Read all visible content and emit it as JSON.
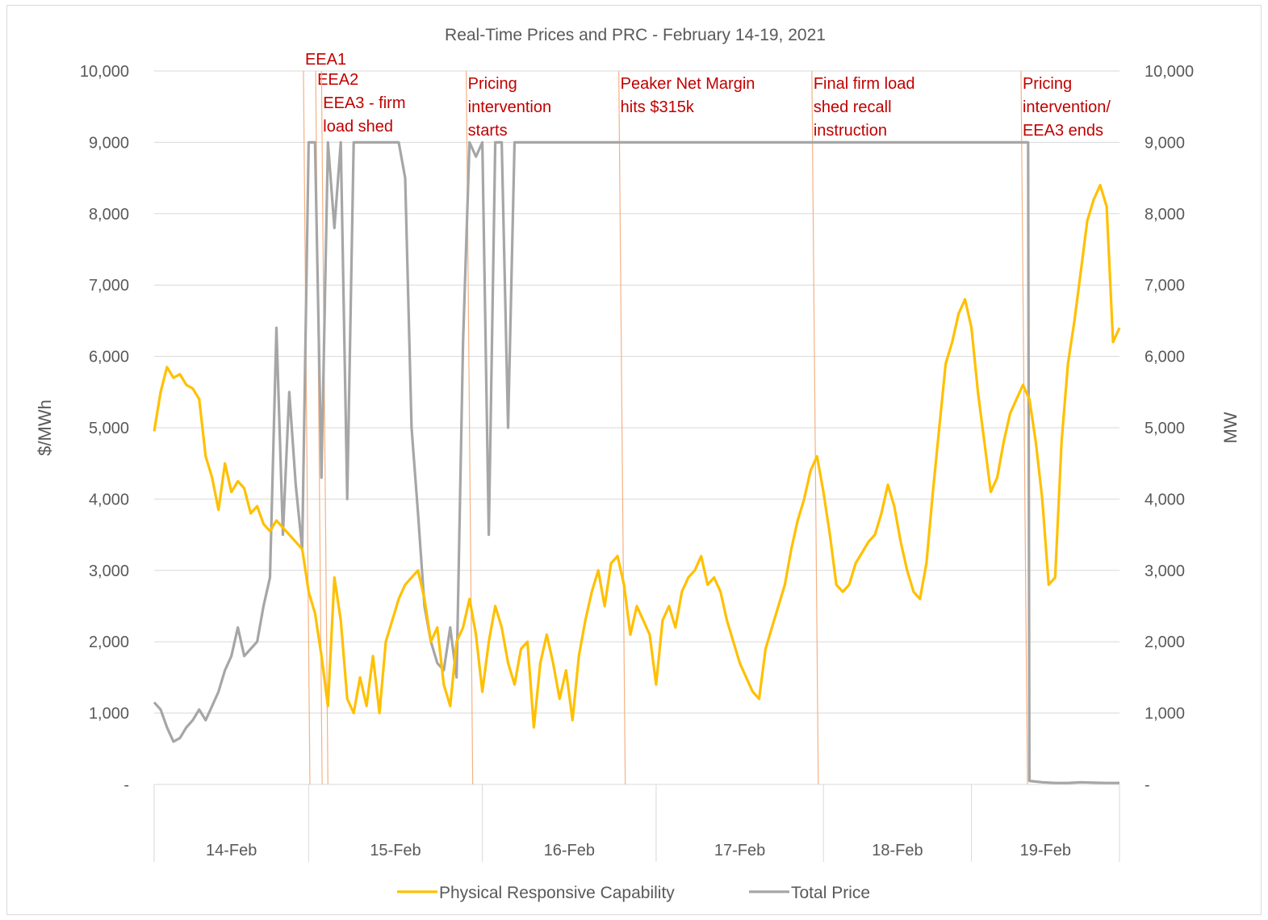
{
  "chart_data": {
    "type": "line",
    "title": "Real-Time Prices and PRC - February 14-19, 2021",
    "ylabel_left": "$/MWh",
    "ylabel_right": "MW",
    "ylim": [
      0,
      10000
    ],
    "y_ticks": [
      "-",
      "1,000",
      "2,000",
      "3,000",
      "4,000",
      "5,000",
      "6,000",
      "7,000",
      "8,000",
      "9,000",
      "10,000"
    ],
    "x_range_hours": [
      0,
      150
    ],
    "x_categories": [
      {
        "label": "14-Feb",
        "start": 0,
        "end": 24
      },
      {
        "label": "15-Feb",
        "start": 24,
        "end": 51
      },
      {
        "label": "16-Feb",
        "start": 51,
        "end": 78
      },
      {
        "label": "17-Feb",
        "start": 78,
        "end": 104
      },
      {
        "label": "18-Feb",
        "start": 104,
        "end": 127
      },
      {
        "label": "19-Feb",
        "start": 127,
        "end": 150
      }
    ],
    "series": [
      {
        "name": "Physical Responsive Capability",
        "color": "#ffc000",
        "points": [
          [
            0,
            4950
          ],
          [
            1,
            5500
          ],
          [
            2,
            5850
          ],
          [
            3,
            5700
          ],
          [
            4,
            5750
          ],
          [
            5,
            5600
          ],
          [
            6,
            5550
          ],
          [
            7,
            5400
          ],
          [
            8,
            4600
          ],
          [
            9,
            4300
          ],
          [
            10,
            3850
          ],
          [
            11,
            4500
          ],
          [
            12,
            4100
          ],
          [
            13,
            4250
          ],
          [
            14,
            4150
          ],
          [
            15,
            3800
          ],
          [
            16,
            3900
          ],
          [
            17,
            3650
          ],
          [
            18,
            3550
          ],
          [
            19,
            3700
          ],
          [
            20,
            3600
          ],
          [
            21,
            3500
          ],
          [
            22,
            3400
          ],
          [
            23,
            3300
          ],
          [
            24,
            2700
          ],
          [
            25,
            2400
          ],
          [
            26,
            1800
          ],
          [
            27,
            1100
          ],
          [
            28,
            2900
          ],
          [
            29,
            2300
          ],
          [
            30,
            1200
          ],
          [
            31,
            1000
          ],
          [
            32,
            1500
          ],
          [
            33,
            1100
          ],
          [
            34,
            1800
          ],
          [
            35,
            1000
          ],
          [
            36,
            2000
          ],
          [
            37,
            2300
          ],
          [
            38,
            2600
          ],
          [
            39,
            2800
          ],
          [
            40,
            2900
          ],
          [
            41,
            3000
          ],
          [
            42,
            2600
          ],
          [
            43,
            2000
          ],
          [
            44,
            2200
          ],
          [
            45,
            1400
          ],
          [
            46,
            1100
          ],
          [
            47,
            2000
          ],
          [
            48,
            2200
          ],
          [
            49,
            2600
          ],
          [
            50,
            2100
          ],
          [
            51,
            1300
          ],
          [
            52,
            2000
          ],
          [
            53,
            2500
          ],
          [
            54,
            2200
          ],
          [
            55,
            1700
          ],
          [
            56,
            1400
          ],
          [
            57,
            1900
          ],
          [
            58,
            2000
          ],
          [
            59,
            800
          ],
          [
            60,
            1700
          ],
          [
            61,
            2100
          ],
          [
            62,
            1700
          ],
          [
            63,
            1200
          ],
          [
            64,
            1600
          ],
          [
            65,
            900
          ],
          [
            66,
            1800
          ],
          [
            67,
            2300
          ],
          [
            68,
            2700
          ],
          [
            69,
            3000
          ],
          [
            70,
            2500
          ],
          [
            71,
            3100
          ],
          [
            72,
            3200
          ],
          [
            73,
            2800
          ],
          [
            74,
            2100
          ],
          [
            75,
            2500
          ],
          [
            76,
            2300
          ],
          [
            77,
            2100
          ],
          [
            78,
            1400
          ],
          [
            79,
            2300
          ],
          [
            80,
            2500
          ],
          [
            81,
            2200
          ],
          [
            82,
            2700
          ],
          [
            83,
            2900
          ],
          [
            84,
            3000
          ],
          [
            85,
            3200
          ],
          [
            86,
            2800
          ],
          [
            87,
            2900
          ],
          [
            88,
            2700
          ],
          [
            89,
            2300
          ],
          [
            90,
            2000
          ],
          [
            91,
            1700
          ],
          [
            92,
            1500
          ],
          [
            93,
            1300
          ],
          [
            94,
            1200
          ],
          [
            95,
            1900
          ],
          [
            96,
            2200
          ],
          [
            97,
            2500
          ],
          [
            98,
            2800
          ],
          [
            99,
            3300
          ],
          [
            100,
            3700
          ],
          [
            101,
            4000
          ],
          [
            102,
            4400
          ],
          [
            103,
            4600
          ],
          [
            104,
            4100
          ],
          [
            105,
            3500
          ],
          [
            106,
            2800
          ],
          [
            107,
            2700
          ],
          [
            108,
            2800
          ],
          [
            109,
            3100
          ],
          [
            110,
            3250
          ],
          [
            111,
            3400
          ],
          [
            112,
            3500
          ],
          [
            113,
            3800
          ],
          [
            114,
            4200
          ],
          [
            115,
            3900
          ],
          [
            116,
            3400
          ],
          [
            117,
            3000
          ],
          [
            118,
            2700
          ],
          [
            119,
            2600
          ],
          [
            120,
            3100
          ],
          [
            121,
            4100
          ],
          [
            122,
            5000
          ],
          [
            123,
            5900
          ],
          [
            124,
            6200
          ],
          [
            125,
            6600
          ],
          [
            126,
            6800
          ],
          [
            127,
            6400
          ],
          [
            128,
            5500
          ],
          [
            129,
            4800
          ],
          [
            130,
            4100
          ],
          [
            131,
            4300
          ],
          [
            132,
            4800
          ],
          [
            133,
            5200
          ],
          [
            134,
            5400
          ],
          [
            135,
            5600
          ],
          [
            136,
            5400
          ],
          [
            137,
            4800
          ],
          [
            138,
            4000
          ],
          [
            139,
            2800
          ],
          [
            140,
            2900
          ],
          [
            141,
            4800
          ],
          [
            142,
            5900
          ],
          [
            143,
            6500
          ],
          [
            144,
            7200
          ],
          [
            145,
            7900
          ],
          [
            146,
            8200
          ],
          [
            147,
            8400
          ],
          [
            148,
            8100
          ],
          [
            149,
            6200
          ],
          [
            150,
            6400
          ]
        ]
      },
      {
        "name": "Total Price",
        "color": "#a6a6a6",
        "points": [
          [
            0,
            1150
          ],
          [
            1,
            1050
          ],
          [
            2,
            800
          ],
          [
            3,
            600
          ],
          [
            4,
            650
          ],
          [
            5,
            800
          ],
          [
            6,
            900
          ],
          [
            7,
            1050
          ],
          [
            8,
            900
          ],
          [
            9,
            1100
          ],
          [
            10,
            1300
          ],
          [
            11,
            1600
          ],
          [
            12,
            1800
          ],
          [
            13,
            2200
          ],
          [
            14,
            1800
          ],
          [
            15,
            1900
          ],
          [
            16,
            2000
          ],
          [
            17,
            2500
          ],
          [
            18,
            2900
          ],
          [
            19,
            6400
          ],
          [
            20,
            3500
          ],
          [
            21,
            5500
          ],
          [
            22,
            4200
          ],
          [
            23,
            3300
          ],
          [
            24,
            9000
          ],
          [
            25,
            9000
          ],
          [
            26,
            4300
          ],
          [
            27,
            9000
          ],
          [
            28,
            7800
          ],
          [
            29,
            9000
          ],
          [
            30,
            4000
          ],
          [
            31,
            9000
          ],
          [
            32,
            9000
          ],
          [
            33,
            9000
          ],
          [
            34,
            9000
          ],
          [
            35,
            9000
          ],
          [
            36,
            9000
          ],
          [
            37,
            9000
          ],
          [
            38,
            9000
          ],
          [
            39,
            8500
          ],
          [
            40,
            5000
          ],
          [
            41,
            3800
          ],
          [
            42,
            2500
          ],
          [
            43,
            2000
          ],
          [
            44,
            1700
          ],
          [
            45,
            1600
          ],
          [
            46,
            2200
          ],
          [
            47,
            1500
          ],
          [
            48,
            6200
          ],
          [
            49,
            9000
          ],
          [
            50,
            8800
          ],
          [
            51,
            9000
          ],
          [
            52,
            3500
          ],
          [
            53,
            9000
          ],
          [
            54,
            9000
          ],
          [
            55,
            5000
          ],
          [
            56,
            9000
          ],
          [
            57,
            9000
          ],
          [
            58,
            9000
          ],
          [
            59,
            9000
          ],
          [
            60,
            9000
          ],
          [
            61,
            9000
          ],
          [
            62,
            9000
          ],
          [
            63,
            9000
          ],
          [
            64,
            9000
          ],
          [
            65,
            9000
          ],
          [
            66,
            9000
          ],
          [
            67,
            9000
          ],
          [
            68,
            9000
          ],
          [
            69,
            9000
          ],
          [
            70,
            9000
          ],
          [
            71,
            9000
          ],
          [
            72,
            9000
          ],
          [
            73,
            9000
          ],
          [
            74,
            9000
          ],
          [
            75,
            9000
          ],
          [
            76,
            9000
          ],
          [
            77,
            9000
          ],
          [
            78,
            9000
          ],
          [
            79,
            9000
          ],
          [
            80,
            9000
          ],
          [
            81,
            9000
          ],
          [
            82,
            9000
          ],
          [
            83,
            9000
          ],
          [
            84,
            9000
          ],
          [
            85,
            9000
          ],
          [
            86,
            9000
          ],
          [
            87,
            9000
          ],
          [
            88,
            9000
          ],
          [
            89,
            9000
          ],
          [
            90,
            9000
          ],
          [
            91,
            9000
          ],
          [
            92,
            9000
          ],
          [
            93,
            9000
          ],
          [
            94,
            9000
          ],
          [
            95,
            9000
          ],
          [
            96,
            9000
          ],
          [
            97,
            9000
          ],
          [
            98,
            9000
          ],
          [
            99,
            9000
          ],
          [
            100,
            9000
          ],
          [
            101,
            9000
          ],
          [
            102,
            9000
          ],
          [
            103,
            9000
          ],
          [
            104,
            9000
          ],
          [
            105,
            9000
          ],
          [
            106,
            9000
          ],
          [
            107,
            9000
          ],
          [
            108,
            9000
          ],
          [
            109,
            9000
          ],
          [
            110,
            9000
          ],
          [
            111,
            9000
          ],
          [
            112,
            9000
          ],
          [
            113,
            9000
          ],
          [
            114,
            9000
          ],
          [
            115,
            9000
          ],
          [
            116,
            9000
          ],
          [
            117,
            9000
          ],
          [
            118,
            9000
          ],
          [
            119,
            9000
          ],
          [
            120,
            9000
          ],
          [
            121,
            9000
          ],
          [
            122,
            9000
          ],
          [
            123,
            9000
          ],
          [
            124,
            9000
          ],
          [
            125,
            9000
          ],
          [
            126,
            9000
          ],
          [
            127,
            9000
          ],
          [
            128,
            9000
          ],
          [
            129,
            9000
          ],
          [
            130,
            9000
          ],
          [
            131,
            9000
          ],
          [
            132,
            9000
          ],
          [
            133,
            9000
          ],
          [
            134,
            9000
          ],
          [
            135,
            9000
          ],
          [
            135.8,
            9000
          ],
          [
            136,
            50
          ],
          [
            138,
            30
          ],
          [
            140,
            20
          ],
          [
            142,
            20
          ],
          [
            144,
            30
          ],
          [
            146,
            25
          ],
          [
            148,
            20
          ],
          [
            150,
            20
          ]
        ]
      }
    ],
    "annotations": [
      {
        "lines": [
          "EEA1"
        ],
        "x_hour": 24.2
      },
      {
        "lines": [
          "EEA2"
        ],
        "x_hour": 26.1
      },
      {
        "lines": [
          "EEA3 - firm",
          "load shed"
        ],
        "x_hour": 27.0
      },
      {
        "lines": [
          "Pricing",
          "intervention",
          "starts"
        ],
        "x_hour": 49.5
      },
      {
        "lines": [
          "Peaker Net Margin",
          "hits $315k"
        ],
        "x_hour": 73.2
      },
      {
        "lines": [
          "Final firm load",
          "shed recall",
          "instruction"
        ],
        "x_hour": 103.2
      },
      {
        "lines": [
          "Pricing",
          "intervention/",
          "EEA3 ends"
        ],
        "x_hour": 135.7
      }
    ],
    "annotation_color": "#f4b183",
    "legend": {
      "position": "bottom"
    }
  }
}
